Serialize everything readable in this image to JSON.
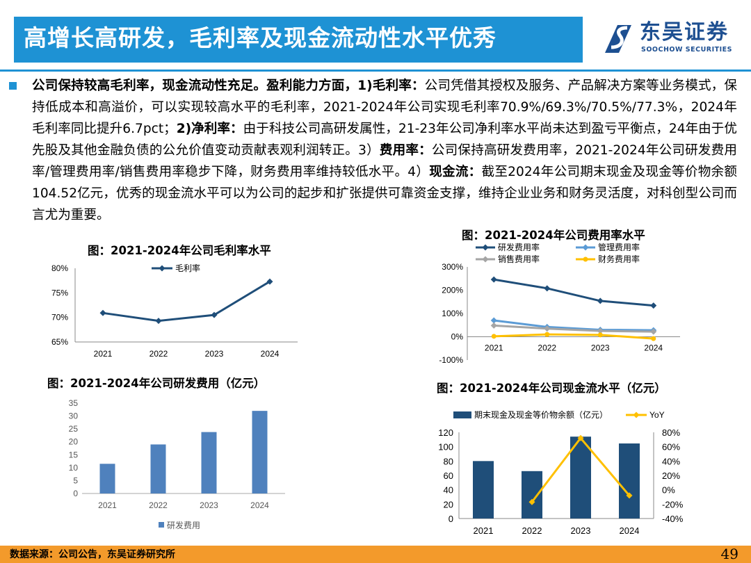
{
  "header": {
    "title": "高增长高研发，毛利率及现金流动性水平优秀",
    "logo_cn": "东吴证券",
    "logo_en": "SOOCHOW SECURITIES"
  },
  "body": {
    "s1": "公司保持较高毛利率，现金流动性充足。盈利能力方面，1)毛利率：",
    "s2": "公司凭借其授权及服务、产品解决方案等业务模式，保持低成本和高溢价，可以实现较高水平的毛利率，2021-2024年公司实现毛利率70.9%/69.3%/70.5%/77.3%，2024年毛利率同比提升6.7pct；",
    "s3": "2)净利率：",
    "s4": "由于科技公司高研发属性，21-23年公司净利率水平尚未达到盈亏平衡点，24年由于优先股及其他金融负债的公允价值变动贡献表观利润转正。3）",
    "s5": "费用率：",
    "s6": "公司保持高研发费用率，2021-2024年公司研发费用率/管理费用率/销售费用率稳步下降，财务费用率维持较低水平。4）",
    "s7": "现金流：",
    "s8": "截至2024年公司期末现金及现金等价物余额104.52亿元，优秀的现金流水平可以为公司的起步和扩张提供可靠资金支撑，维持企业业务和财务灵活度，对科创型公司而言尤为重要。"
  },
  "chart_data": [
    {
      "type": "line",
      "title": "图：2021-2024年公司毛利率水平",
      "categories": [
        "2021",
        "2022",
        "2023",
        "2024"
      ],
      "series": [
        {
          "name": "毛利率",
          "values": [
            70.9,
            69.3,
            70.5,
            77.3
          ],
          "color": "#1f4e79"
        }
      ],
      "ylim": [
        65,
        80
      ],
      "yticks": [
        "65%",
        "70%",
        "75%",
        "80%"
      ],
      "legend": "top"
    },
    {
      "type": "line",
      "title": "图：2021-2024年公司费用率水平",
      "categories": [
        "2021",
        "2022",
        "2023",
        "2024"
      ],
      "series": [
        {
          "name": "研发费用率",
          "values": [
            246,
            208,
            154,
            134
          ],
          "color": "#1f4e79"
        },
        {
          "name": "管理费用率",
          "values": [
            70,
            42,
            30,
            28
          ],
          "color": "#5b9bd5"
        },
        {
          "name": "销售费用率",
          "values": [
            48,
            35,
            25,
            22
          ],
          "color": "#a5a5a5"
        },
        {
          "name": "财务费用率",
          "values": [
            2,
            10,
            8,
            -8
          ],
          "color": "#ffc000"
        }
      ],
      "ylim": [
        -100,
        300
      ],
      "yticks": [
        "-100%",
        "0%",
        "100%",
        "200%",
        "300%"
      ],
      "legend": "top"
    },
    {
      "type": "bar",
      "title": "图：2021-2024年公司研发费用（亿元）",
      "categories": [
        "2021",
        "2022",
        "2023",
        "2024"
      ],
      "series": [
        {
          "name": "研发费用",
          "values": [
            11.5,
            19,
            23.8,
            32
          ],
          "color": "#4f81bd"
        }
      ],
      "ylim": [
        0,
        35
      ],
      "yticks": [
        "0",
        "5",
        "10",
        "15",
        "20",
        "25",
        "30",
        "35"
      ],
      "legend": "bottom"
    },
    {
      "type": "bar",
      "title": "图：2021-2024年公司现金流水平（亿元）",
      "categories": [
        "2021",
        "2022",
        "2023",
        "2024"
      ],
      "series": [
        {
          "name": "期末现金及现金等价物余额（亿元）",
          "values": [
            80,
            66,
            114,
            104.5
          ],
          "color": "#1f4e79",
          "axis": "left"
        },
        {
          "name": "YoY",
          "values": [
            null,
            -17,
            72,
            -8
          ],
          "color": "#ffc000",
          "axis": "right",
          "type": "line"
        }
      ],
      "ylim": [
        0,
        120
      ],
      "yticks": [
        "0",
        "20",
        "40",
        "60",
        "80",
        "100",
        "120"
      ],
      "y2lim": [
        -40,
        80
      ],
      "y2ticks": [
        "-40%",
        "-20%",
        "0%",
        "20%",
        "40%",
        "60%",
        "80%"
      ],
      "legend": "top"
    }
  ],
  "footer": {
    "source": "数据来源：公司公告，东吴证券研究所",
    "page": "49"
  }
}
